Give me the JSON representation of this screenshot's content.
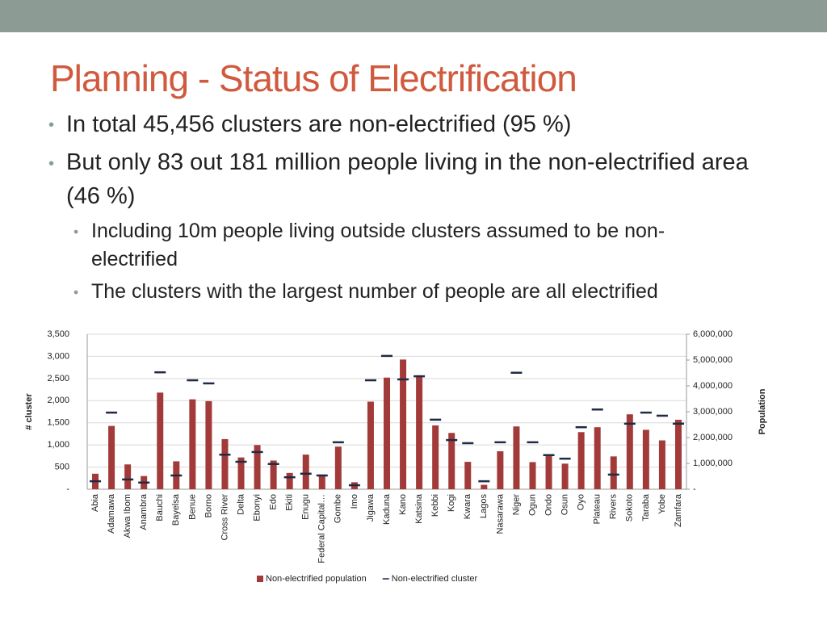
{
  "slide": {
    "title": "Planning - Status of Electrification",
    "bullets": [
      {
        "text": "In total 45,456 clusters are non-electrified (95 %)",
        "level": 1
      },
      {
        "text": "But only 83 out 181 million people living in the non-electrified area (46 %)",
        "level": 1
      },
      {
        "text": "Including 10m people living outside clusters assumed to be non-electrified",
        "level": 2
      },
      {
        "text": "The clusters with the largest number of people are all electrified",
        "level": 2
      }
    ]
  },
  "chart_data": {
    "type": "combo",
    "categories": [
      "Abia",
      "Adamawa",
      "Akwa Ibom",
      "Anambra",
      "Bauchi",
      "Bayelsa",
      "Benue",
      "Borno",
      "Cross River",
      "Delta",
      "Ebonyi",
      "Edo",
      "Ekiti",
      "Enugu",
      "Federal Capital…",
      "Gombe",
      "Imo",
      "Jigawa",
      "Kaduna",
      "Kano",
      "Katsina",
      "Kebbi",
      "Kogi",
      "Kwara",
      "Lagos",
      "Nasarawa",
      "Niger",
      "Ogun",
      "Ondo",
      "Osun",
      "Oyo",
      "Plateau",
      "Rivers",
      "Sokoto",
      "Taraba",
      "Yobe",
      "Zamfara"
    ],
    "series": [
      {
        "name": "Non-electrified population",
        "type": "bar",
        "axis": "y2",
        "color": "#a33a3a",
        "values": [
          600000,
          2450000,
          960000,
          510000,
          3740000,
          1080000,
          3480000,
          3410000,
          1940000,
          1230000,
          1710000,
          1110000,
          630000,
          1340000,
          570000,
          1650000,
          270000,
          3390000,
          4320000,
          5020000,
          4410000,
          2470000,
          2180000,
          1060000,
          170000,
          1470000,
          2430000,
          1050000,
          1350000,
          990000,
          2210000,
          2400000,
          1270000,
          2900000,
          2300000,
          1890000,
          2690000
        ]
      },
      {
        "name": "Non-electrified cluster",
        "type": "dash",
        "axis": "y",
        "color": "#1f2a44",
        "values": [
          180,
          1730,
          220,
          150,
          2640,
          310,
          2460,
          2390,
          780,
          620,
          840,
          570,
          270,
          350,
          310,
          1060,
          90,
          2460,
          3010,
          2480,
          2550,
          1570,
          1110,
          1040,
          180,
          1060,
          2630,
          1060,
          770,
          690,
          1400,
          1800,
          330,
          1480,
          1730,
          1660,
          1480
        ]
      }
    ],
    "y_label": "# cluster",
    "y2_label": "Population",
    "ylim": [
      0,
      3500
    ],
    "yticks": [
      {
        "value": 0,
        "label": "-"
      },
      500,
      {
        "value": 1000,
        "label": "1,000"
      },
      {
        "value": 1500,
        "label": "1,500"
      },
      {
        "value": 2000,
        "label": "2,000"
      },
      {
        "value": 2500,
        "label": "2,500"
      },
      {
        "value": 3000,
        "label": "3,000"
      },
      {
        "value": 3500,
        "label": "3,500"
      }
    ],
    "y2lim": [
      0,
      6000000
    ],
    "y2ticks": [
      {
        "value": 0,
        "label": "-"
      },
      {
        "value": 1000000,
        "label": "1,000,000"
      },
      {
        "value": 2000000,
        "label": "2,000,000"
      },
      {
        "value": 3000000,
        "label": "3,000,000"
      },
      {
        "value": 4000000,
        "label": "4,000,000"
      },
      {
        "value": 5000000,
        "label": "5,000,000"
      },
      {
        "value": 6000000,
        "label": "6,000,000"
      }
    ],
    "grid": true,
    "legend": "bottom"
  }
}
